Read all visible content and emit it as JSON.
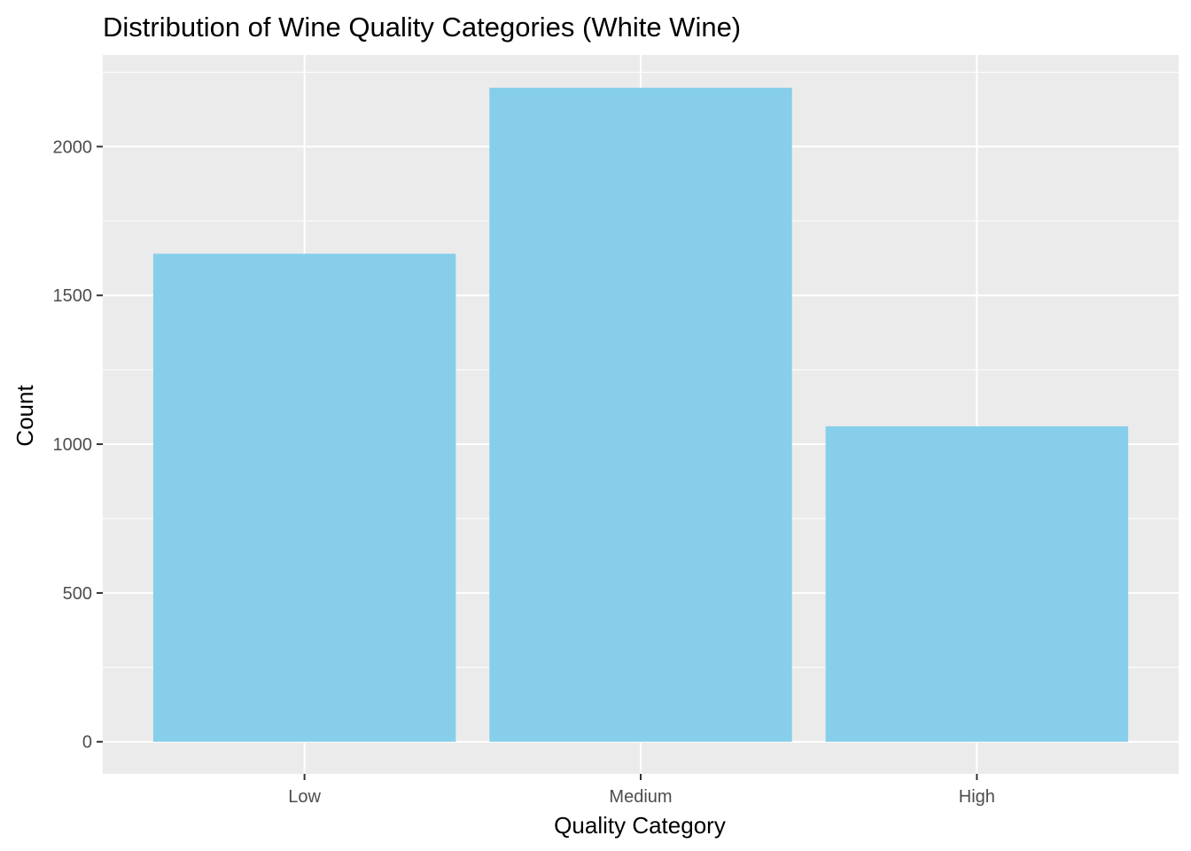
{
  "chart_data": {
    "type": "bar",
    "title": "Distribution of Wine Quality Categories (White Wine)",
    "xlabel": "Quality Category",
    "ylabel": "Count",
    "categories": [
      "Low",
      "Medium",
      "High"
    ],
    "values": [
      1640,
      2198,
      1060
    ],
    "ylim": [
      -108,
      2308
    ],
    "yticks": [
      0,
      500,
      1000,
      1500,
      2000
    ],
    "yticks_minor": [
      250,
      750,
      1250,
      1750,
      2250
    ],
    "grid": true,
    "legend": "none",
    "colors": {
      "bar_fill": "#87CEEB",
      "panel_background": "#EBEBEB",
      "grid": "#FFFFFF",
      "tick_text": "#4D4D4D",
      "text": "#000000"
    }
  }
}
